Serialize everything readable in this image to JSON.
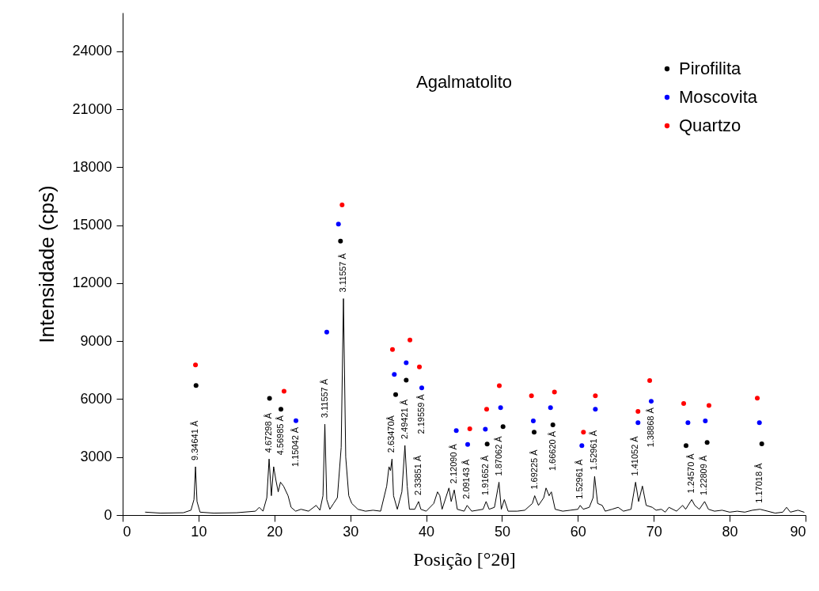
{
  "chart_data": {
    "type": "line",
    "title": "Agalmatolito",
    "xlabel": "Posição [°2θ]",
    "ylabel": "Intensidade (cps)",
    "xlim": [
      0,
      90
    ],
    "xticks": [
      0,
      10,
      20,
      30,
      40,
      50,
      60,
      70,
      80,
      90
    ],
    "ylim": [
      0,
      26000
    ],
    "yticks": [
      0,
      3000,
      6000,
      9000,
      12000,
      15000,
      18000,
      21000,
      24000
    ],
    "grid": false,
    "legend": "top right",
    "series": [
      {
        "type": "line",
        "color": "#000000",
        "x": [
          3,
          5,
          8,
          9,
          9.4,
          9.6,
          9.8,
          10.2,
          12,
          15,
          17.5,
          18,
          18.5,
          19,
          19.3,
          19.6,
          19.9,
          20.2,
          20.5,
          20.8,
          21.2,
          21.8,
          22.2,
          22.8,
          23.5,
          24.5,
          25.5,
          26,
          26.4,
          26.65,
          26.9,
          27.3,
          27.8,
          28.3,
          28.8,
          29.1,
          29.4,
          29.8,
          30.2,
          31,
          32,
          33,
          34,
          34.8,
          35.1,
          35.3,
          35.5,
          35.7,
          36.2,
          36.8,
          37.2,
          37.5,
          37.8,
          38.5,
          39,
          39.3,
          40,
          41,
          41.5,
          41.8,
          42.1,
          43,
          43.3,
          43.7,
          44.1,
          45,
          45.4,
          46,
          47.5,
          47.9,
          48.3,
          49,
          49.6,
          49.9,
          50.3,
          50.8,
          52,
          53,
          54,
          54.3,
          54.8,
          55.5,
          55.8,
          56.2,
          56.5,
          57,
          58,
          59,
          60,
          60.3,
          60.7,
          61.5,
          62,
          62.2,
          62.6,
          63.2,
          63.6,
          64.5,
          65.3,
          66,
          67,
          67.6,
          68,
          68.5,
          69,
          69.8,
          70.3,
          71,
          71.5,
          72,
          73,
          73.8,
          74.2,
          75,
          75.4,
          76,
          76.7,
          77.2,
          78,
          79,
          80,
          81,
          82,
          83,
          84,
          85,
          86,
          87,
          87.5,
          88,
          89,
          89.8
        ],
        "values": [
          150,
          100,
          120,
          250,
          800,
          2500,
          700,
          150,
          100,
          120,
          200,
          400,
          200,
          900,
          2900,
          1000,
          2500,
          1800,
          1200,
          1700,
          1500,
          1000,
          400,
          200,
          300,
          200,
          500,
          250,
          1000,
          4700,
          800,
          300,
          600,
          900,
          3500,
          11200,
          3000,
          1000,
          600,
          300,
          200,
          250,
          200,
          1500,
          2500,
          2300,
          2900,
          1000,
          300,
          1200,
          3600,
          1500,
          300,
          300,
          700,
          300,
          200,
          600,
          1200,
          1000,
          300,
          1400,
          700,
          1300,
          300,
          200,
          500,
          200,
          300,
          700,
          300,
          400,
          1700,
          300,
          800,
          200,
          200,
          250,
          600,
          1000,
          500,
          900,
          1400,
          1000,
          1200,
          300,
          200,
          250,
          300,
          500,
          300,
          400,
          900,
          2000,
          600,
          500,
          200,
          300,
          400,
          200,
          300,
          1700,
          700,
          1500,
          500,
          400,
          250,
          300,
          150,
          400,
          200,
          500,
          300,
          800,
          500,
          300,
          700,
          300,
          200,
          250,
          150,
          200,
          150,
          250,
          300,
          200,
          100,
          150,
          400,
          150,
          250,
          150
        ]
      },
      {
        "type": "scatter",
        "name": "Pirofilita",
        "color": "#000000",
        "x": [
          9.67,
          19.36,
          20.86,
          28.71,
          35.98,
          37.37,
          48.04,
          50.13,
          54.23,
          56.7,
          74.25,
          77.03,
          84.23
        ],
        "values": [
          6700,
          6040,
          5480,
          14180,
          6230,
          6980,
          3670,
          4580,
          4290,
          4670,
          3590,
          3760,
          3680
        ]
      },
      {
        "type": "scatter",
        "name": "Moscovita",
        "color": "#0000ff",
        "x": [
          22.84,
          26.9,
          28.44,
          35.8,
          37.37,
          39.42,
          43.97,
          45.47,
          47.8,
          49.81,
          54.12,
          56.39,
          60.52,
          62.3,
          67.92,
          69.66,
          74.5,
          76.79,
          83.92
        ],
        "values": [
          4880,
          9470,
          15060,
          7280,
          7880,
          6580,
          4370,
          3650,
          4440,
          5560,
          4870,
          5560,
          3590,
          5480,
          4780,
          5890,
          4780,
          4870,
          4780
        ]
      },
      {
        "type": "scatter",
        "name": "Quartzo",
        "color": "#ff0000",
        "x": [
          9.6,
          21.27,
          28.92,
          35.56,
          37.86,
          39.11,
          45.75,
          47.97,
          49.64,
          53.88,
          56.91,
          60.73,
          62.3,
          67.92,
          69.46,
          73.94,
          77.27,
          83.64
        ],
        "values": [
          7770,
          6410,
          16050,
          8570,
          9060,
          7670,
          4460,
          5480,
          6690,
          6170,
          6370,
          4290,
          6170,
          5360,
          6960,
          5770,
          5670,
          6050
        ]
      }
    ],
    "annotations": [
      {
        "text": "9.34641 Å",
        "x": 9.6,
        "y": 2500
      },
      {
        "text": "4.67298 Å",
        "x": 19.3,
        "y": 2900
      },
      {
        "text": "4.56985 Å",
        "x": 20.86,
        "y": 5480
      },
      {
        "text": "1.15042 Å",
        "x": 22.84,
        "y": 4880
      },
      {
        "text": "3.11557 Å",
        "x": 26.65,
        "y": 4700
      },
      {
        "text": "3.11557 Å",
        "x": 29.1,
        "y": 11200
      },
      {
        "text": "2.63470Å",
        "x": 35.5,
        "y": 2900
      },
      {
        "text": "2.49421 Å",
        "x": 37.2,
        "y": 3600
      },
      {
        "text": "2.19559 Å",
        "x": 39.42,
        "y": 6580
      },
      {
        "text": "2.33851 Å",
        "x": 39,
        "y": 700
      },
      {
        "text": "2.12090 Å",
        "x": 43.7,
        "y": 1300
      },
      {
        "text": "2.09143 Å",
        "x": 45.4,
        "y": 500
      },
      {
        "text": "1.91652 Å",
        "x": 47.9,
        "y": 700
      },
      {
        "text": "1.87062 Å",
        "x": 49.6,
        "y": 1700
      },
      {
        "text": "1.69225 Å",
        "x": 54.3,
        "y": 1000
      },
      {
        "text": "1.66620 Å",
        "x": 56.7,
        "y": 4670
      },
      {
        "text": "1.52961 Å",
        "x": 60.3,
        "y": 500
      },
      {
        "text": "1.52961 Å",
        "x": 62.2,
        "y": 2000
      },
      {
        "text": "1.41052 Å",
        "x": 67.6,
        "y": 1700
      },
      {
        "text": "1.38868 Å",
        "x": 69.66,
        "y": 5890
      },
      {
        "text": "1.24570 Å",
        "x": 75,
        "y": 800
      },
      {
        "text": "1.22809 Å",
        "x": 76.7,
        "y": 700
      },
      {
        "text": "1.17018 Å",
        "x": 84,
        "y": 300
      }
    ]
  }
}
